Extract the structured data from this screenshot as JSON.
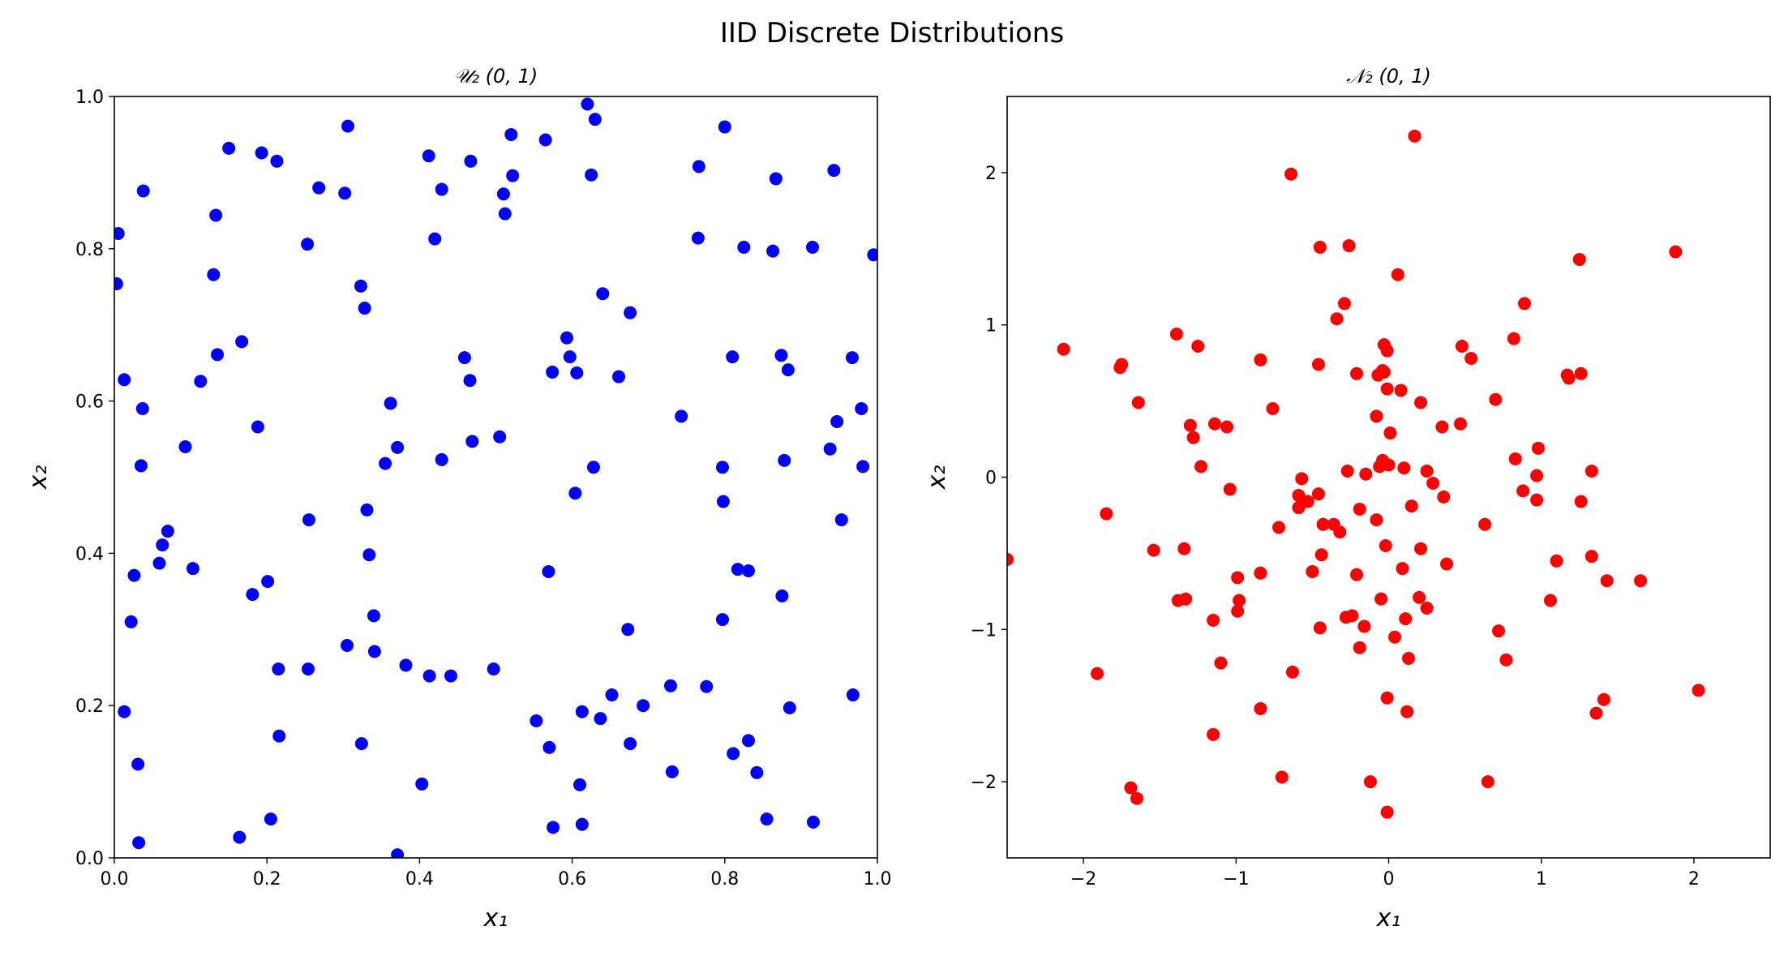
{
  "figure": {
    "suptitle": "IID Discrete Distributions"
  },
  "chart_data": [
    {
      "type": "scatter",
      "title": "𝒰₂ (0, 1)",
      "xlabel": "x₁",
      "ylabel": "x₂",
      "xlim": [
        0,
        1
      ],
      "ylim": [
        0,
        1
      ],
      "xticks": [
        0.0,
        0.2,
        0.4,
        0.6,
        0.8,
        1.0
      ],
      "yticks": [
        0.0,
        0.2,
        0.4,
        0.6,
        0.8,
        1.0
      ],
      "xtick_labels": [
        "0.0",
        "0.2",
        "0.4",
        "0.6",
        "0.8",
        "1.0"
      ],
      "ytick_labels": [
        "0.0",
        "0.2",
        "0.4",
        "0.6",
        "0.8",
        "1.0"
      ],
      "grid": false,
      "color": "#0000ff",
      "series": [
        {
          "points": [
            [
              0.62,
              0.99
            ],
            [
              0.306,
              0.961
            ],
            [
              0.63,
              0.97
            ],
            [
              0.8,
              0.96
            ],
            [
              0.52,
              0.95
            ],
            [
              0.565,
              0.943
            ],
            [
              0.15,
              0.932
            ],
            [
              0.193,
              0.926
            ],
            [
              0.412,
              0.922
            ],
            [
              0.213,
              0.915
            ],
            [
              0.467,
              0.915
            ],
            [
              0.766,
              0.908
            ],
            [
              0.943,
              0.903
            ],
            [
              0.625,
              0.897
            ],
            [
              0.522,
              0.896
            ],
            [
              0.867,
              0.892
            ],
            [
              0.268,
              0.88
            ],
            [
              0.429,
              0.878
            ],
            [
              0.038,
              0.876
            ],
            [
              0.302,
              0.873
            ],
            [
              0.51,
              0.872
            ],
            [
              0.133,
              0.844
            ],
            [
              0.512,
              0.846
            ],
            [
              0.005,
              0.82
            ],
            [
              0.42,
              0.813
            ],
            [
              0.765,
              0.814
            ],
            [
              0.253,
              0.806
            ],
            [
              0.825,
              0.802
            ],
            [
              0.915,
              0.802
            ],
            [
              0.863,
              0.797
            ],
            [
              0.995,
              0.792
            ],
            [
              0.13,
              0.766
            ],
            [
              0.003,
              0.754
            ],
            [
              0.323,
              0.751
            ],
            [
              0.64,
              0.741
            ],
            [
              0.328,
              0.722
            ],
            [
              0.676,
              0.716
            ],
            [
              0.593,
              0.683
            ],
            [
              0.167,
              0.678
            ],
            [
              0.135,
              0.661
            ],
            [
              0.597,
              0.658
            ],
            [
              0.459,
              0.657
            ],
            [
              0.81,
              0.658
            ],
            [
              0.874,
              0.66
            ],
            [
              0.967,
              0.657
            ],
            [
              0.574,
              0.638
            ],
            [
              0.606,
              0.637
            ],
            [
              0.883,
              0.641
            ],
            [
              0.013,
              0.628
            ],
            [
              0.113,
              0.626
            ],
            [
              0.466,
              0.627
            ],
            [
              0.661,
              0.632
            ],
            [
              0.362,
              0.597
            ],
            [
              0.037,
              0.59
            ],
            [
              0.979,
              0.59
            ],
            [
              0.743,
              0.58
            ],
            [
              0.947,
              0.573
            ],
            [
              0.188,
              0.566
            ],
            [
              0.469,
              0.547
            ],
            [
              0.505,
              0.553
            ],
            [
              0.093,
              0.54
            ],
            [
              0.371,
              0.539
            ],
            [
              0.938,
              0.537
            ],
            [
              0.355,
              0.518
            ],
            [
              0.429,
              0.523
            ],
            [
              0.035,
              0.515
            ],
            [
              0.628,
              0.513
            ],
            [
              0.797,
              0.513
            ],
            [
              0.878,
              0.522
            ],
            [
              0.981,
              0.514
            ],
            [
              0.604,
              0.479
            ],
            [
              0.798,
              0.468
            ],
            [
              0.331,
              0.457
            ],
            [
              0.255,
              0.444
            ],
            [
              0.953,
              0.444
            ],
            [
              0.07,
              0.429
            ],
            [
              0.063,
              0.411
            ],
            [
              0.334,
              0.398
            ],
            [
              0.059,
              0.387
            ],
            [
              0.103,
              0.38
            ],
            [
              0.569,
              0.376
            ],
            [
              0.817,
              0.379
            ],
            [
              0.831,
              0.377
            ],
            [
              0.026,
              0.371
            ],
            [
              0.201,
              0.363
            ],
            [
              0.181,
              0.346
            ],
            [
              0.875,
              0.344
            ],
            [
              0.34,
              0.318
            ],
            [
              0.797,
              0.313
            ],
            [
              0.022,
              0.31
            ],
            [
              0.673,
              0.3
            ],
            [
              0.305,
              0.279
            ],
            [
              0.341,
              0.271
            ],
            [
              0.382,
              0.253
            ],
            [
              0.215,
              0.248
            ],
            [
              0.254,
              0.248
            ],
            [
              0.497,
              0.248
            ],
            [
              0.413,
              0.239
            ],
            [
              0.441,
              0.239
            ],
            [
              0.729,
              0.226
            ],
            [
              0.776,
              0.225
            ],
            [
              0.652,
              0.214
            ],
            [
              0.968,
              0.214
            ],
            [
              0.693,
              0.2
            ],
            [
              0.885,
              0.197
            ],
            [
              0.013,
              0.192
            ],
            [
              0.613,
              0.192
            ],
            [
              0.637,
              0.183
            ],
            [
              0.553,
              0.18
            ],
            [
              0.216,
              0.16
            ],
            [
              0.324,
              0.15
            ],
            [
              0.676,
              0.15
            ],
            [
              0.831,
              0.154
            ],
            [
              0.57,
              0.145
            ],
            [
              0.811,
              0.137
            ],
            [
              0.031,
              0.123
            ],
            [
              0.731,
              0.113
            ],
            [
              0.842,
              0.112
            ],
            [
              0.403,
              0.097
            ],
            [
              0.61,
              0.096
            ],
            [
              0.205,
              0.051
            ],
            [
              0.855,
              0.051
            ],
            [
              0.916,
              0.047
            ],
            [
              0.575,
              0.04
            ],
            [
              0.613,
              0.044
            ],
            [
              0.164,
              0.027
            ],
            [
              0.032,
              0.02
            ],
            [
              0.371,
              0.004
            ]
          ]
        }
      ]
    },
    {
      "type": "scatter",
      "title": "𝒩₂ (0, 1)",
      "xlabel": "x₁",
      "ylabel": "x₂",
      "xlim": [
        -2.5,
        2.5
      ],
      "ylim": [
        -2.5,
        2.5
      ],
      "xticks": [
        -2,
        -1,
        0,
        1,
        2
      ],
      "yticks": [
        -2,
        -1,
        0,
        1,
        2
      ],
      "xtick_labels": [
        "−2",
        "−1",
        "0",
        "1",
        "2"
      ],
      "ytick_labels": [
        "−2",
        "−1",
        "0",
        "1",
        "2"
      ],
      "grid": false,
      "color": "#ff0000",
      "series": [
        {
          "points": [
            [
              0.17,
              2.24
            ],
            [
              -0.64,
              1.99
            ],
            [
              -0.45,
              1.51
            ],
            [
              -0.26,
              1.52
            ],
            [
              1.88,
              1.48
            ],
            [
              1.25,
              1.43
            ],
            [
              0.06,
              1.33
            ],
            [
              -0.29,
              1.14
            ],
            [
              0.89,
              1.14
            ],
            [
              -0.34,
              1.04
            ],
            [
              -1.39,
              0.94
            ],
            [
              0.82,
              0.91
            ],
            [
              -2.13,
              0.84
            ],
            [
              -1.25,
              0.86
            ],
            [
              -0.03,
              0.87
            ],
            [
              -0.01,
              0.83
            ],
            [
              0.48,
              0.86
            ],
            [
              -1.75,
              0.74
            ],
            [
              -1.76,
              0.72
            ],
            [
              -0.84,
              0.77
            ],
            [
              -0.46,
              0.74
            ],
            [
              0.54,
              0.78
            ],
            [
              -0.21,
              0.68
            ],
            [
              -0.07,
              0.67
            ],
            [
              -0.04,
              0.7
            ],
            [
              -0.03,
              0.69
            ],
            [
              1.17,
              0.67
            ],
            [
              1.18,
              0.65
            ],
            [
              1.26,
              0.68
            ],
            [
              -0.01,
              0.58
            ],
            [
              0.08,
              0.57
            ],
            [
              -1.64,
              0.49
            ],
            [
              0.21,
              0.49
            ],
            [
              0.7,
              0.51
            ],
            [
              -0.76,
              0.45
            ],
            [
              -0.08,
              0.4
            ],
            [
              -1.3,
              0.34
            ],
            [
              -1.14,
              0.35
            ],
            [
              -1.06,
              0.33
            ],
            [
              0.35,
              0.33
            ],
            [
              0.47,
              0.35
            ],
            [
              -1.28,
              0.26
            ],
            [
              0.01,
              0.29
            ],
            [
              0.98,
              0.19
            ],
            [
              0.83,
              0.12
            ],
            [
              -1.23,
              0.07
            ],
            [
              -0.06,
              0.07
            ],
            [
              -0.04,
              0.11
            ],
            [
              -0.27,
              0.04
            ],
            [
              -0.15,
              0.02
            ],
            [
              0.0,
              0.08
            ],
            [
              0.1,
              0.06
            ],
            [
              0.25,
              0.04
            ],
            [
              0.97,
              0.01
            ],
            [
              1.33,
              0.04
            ],
            [
              -0.57,
              -0.01
            ],
            [
              0.29,
              -0.04
            ],
            [
              -1.04,
              -0.08
            ],
            [
              0.88,
              -0.09
            ],
            [
              -0.59,
              -0.12
            ],
            [
              -0.46,
              -0.11
            ],
            [
              0.36,
              -0.13
            ],
            [
              0.97,
              -0.15
            ],
            [
              1.26,
              -0.16
            ],
            [
              -0.53,
              -0.16
            ],
            [
              -0.59,
              -0.2
            ],
            [
              -0.19,
              -0.21
            ],
            [
              0.15,
              -0.19
            ],
            [
              -1.85,
              -0.24
            ],
            [
              -0.08,
              -0.28
            ],
            [
              -0.43,
              -0.31
            ],
            [
              -0.36,
              -0.31
            ],
            [
              -0.72,
              -0.33
            ],
            [
              -0.32,
              -0.36
            ],
            [
              0.63,
              -0.31
            ],
            [
              -0.02,
              -0.45
            ],
            [
              0.21,
              -0.47
            ],
            [
              -1.54,
              -0.48
            ],
            [
              -1.34,
              -0.47
            ],
            [
              -0.44,
              -0.51
            ],
            [
              1.33,
              -0.52
            ],
            [
              -2.5,
              -0.54
            ],
            [
              0.38,
              -0.57
            ],
            [
              1.1,
              -0.55
            ],
            [
              0.09,
              -0.6
            ],
            [
              -0.5,
              -0.62
            ],
            [
              -0.84,
              -0.63
            ],
            [
              -0.21,
              -0.64
            ],
            [
              -0.99,
              -0.66
            ],
            [
              1.43,
              -0.68
            ],
            [
              1.65,
              -0.68
            ],
            [
              -1.38,
              -0.81
            ],
            [
              -1.33,
              -0.8
            ],
            [
              -0.98,
              -0.81
            ],
            [
              -0.05,
              -0.8
            ],
            [
              0.2,
              -0.79
            ],
            [
              1.06,
              -0.81
            ],
            [
              -0.99,
              -0.88
            ],
            [
              0.25,
              -0.86
            ],
            [
              -0.28,
              -0.92
            ],
            [
              -0.24,
              -0.91
            ],
            [
              0.11,
              -0.93
            ],
            [
              -1.15,
              -0.94
            ],
            [
              -0.45,
              -0.99
            ],
            [
              -0.16,
              -0.98
            ],
            [
              0.04,
              -1.05
            ],
            [
              0.72,
              -1.01
            ],
            [
              -0.19,
              -1.12
            ],
            [
              0.13,
              -1.19
            ],
            [
              -1.1,
              -1.22
            ],
            [
              0.77,
              -1.2
            ],
            [
              -1.91,
              -1.29
            ],
            [
              -0.63,
              -1.28
            ],
            [
              -0.01,
              -1.45
            ],
            [
              1.41,
              -1.46
            ],
            [
              2.03,
              -1.4
            ],
            [
              -0.84,
              -1.52
            ],
            [
              0.12,
              -1.54
            ],
            [
              1.36,
              -1.55
            ],
            [
              -1.15,
              -1.69
            ],
            [
              -0.7,
              -1.97
            ],
            [
              -0.12,
              -2.0
            ],
            [
              0.65,
              -2.0
            ],
            [
              -1.69,
              -2.04
            ],
            [
              -1.65,
              -2.11
            ],
            [
              -0.01,
              -2.2
            ]
          ]
        }
      ]
    }
  ]
}
